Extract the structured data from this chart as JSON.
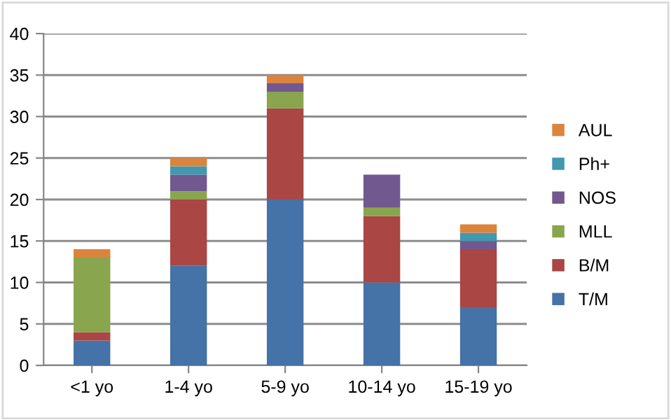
{
  "chart_data": {
    "type": "bar",
    "stacked": true,
    "categories": [
      "<1 yo",
      "1-4 yo",
      "5-9 yo",
      "10-14 yo",
      "15-19 yo"
    ],
    "series": [
      {
        "name": "T/M",
        "color": "#4572a7",
        "values": [
          3,
          12,
          20,
          10,
          7
        ]
      },
      {
        "name": "B/M",
        "color": "#aa4643",
        "values": [
          1,
          8,
          11,
          8,
          7
        ]
      },
      {
        "name": "MLL",
        "color": "#89a54e",
        "values": [
          9,
          1,
          2,
          1,
          0
        ]
      },
      {
        "name": "NOS",
        "color": "#71588f",
        "values": [
          0,
          2,
          1,
          4,
          1
        ]
      },
      {
        "name": "Ph+",
        "color": "#4198af",
        "values": [
          0,
          1,
          0,
          0,
          1
        ]
      },
      {
        "name": "AUL",
        "color": "#db843d",
        "values": [
          1,
          1,
          1,
          0,
          1
        ]
      }
    ],
    "ylim": [
      0,
      40
    ],
    "yticks": [
      0,
      5,
      10,
      15,
      20,
      25,
      30,
      35,
      40
    ],
    "grid": "y",
    "legend": "right"
  }
}
